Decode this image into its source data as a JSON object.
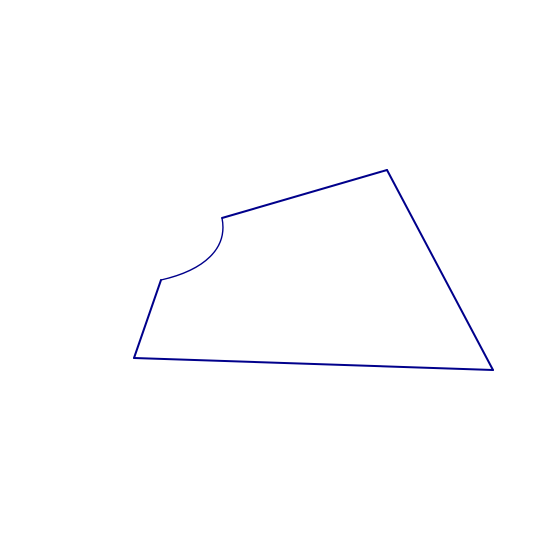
{
  "diagram": {
    "stroke_color": "#00008b",
    "background": "#ffffff",
    "shape": "quadrilateral with concave circular-arc notch on one side"
  }
}
